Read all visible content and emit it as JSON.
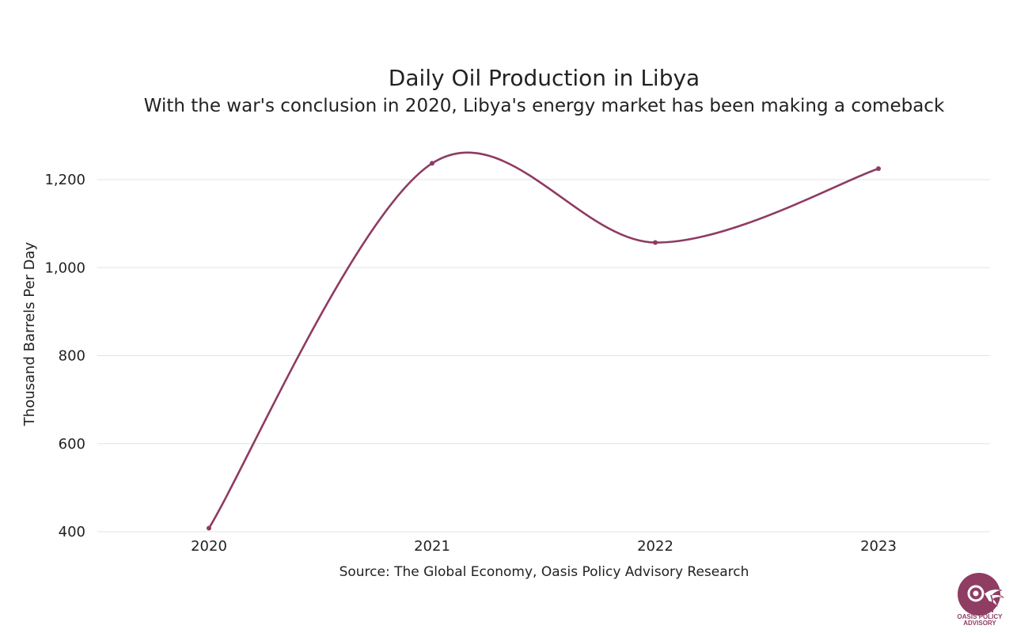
{
  "chart_data": {
    "type": "line",
    "title": "Daily Oil Production in Libya",
    "subtitle": "With the war's conclusion in 2020, Libya's energy market has been making a comeback",
    "xlabel": "",
    "ylabel": "Thousand Barrels Per Day",
    "categories": [
      "2020",
      "2021",
      "2022",
      "2023"
    ],
    "series": [
      {
        "name": "Daily Oil Production",
        "values": [
          408,
          1237,
          1057,
          1225
        ]
      }
    ],
    "ylim": [
      400,
      1300
    ],
    "yticks": [
      400,
      600,
      800,
      1000,
      1200
    ],
    "ytick_labels": [
      "400",
      "600",
      "800",
      "1,000",
      "1,200"
    ],
    "grid": true,
    "line_color": "#8e3b62",
    "smooth": true
  },
  "source": "Source: The Global Economy, Oasis Policy Advisory Research",
  "logo": {
    "text_line1": "OASIS POLICY",
    "text_line2": "ADVISORY",
    "color": "#8f3d63"
  }
}
